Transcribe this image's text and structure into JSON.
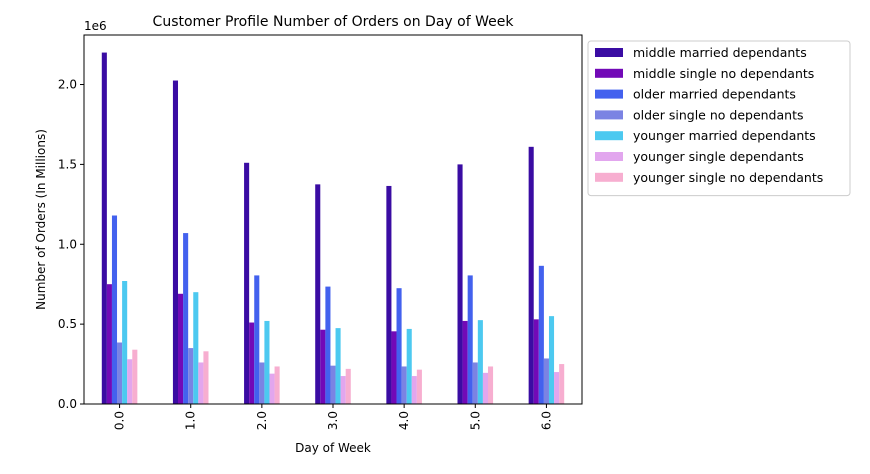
{
  "chart_data": {
    "type": "bar",
    "title": "Customer Profile Number of Orders on Day of Week",
    "xlabel": "Day of Week",
    "ylabel": "Number of Orders (In Millions)",
    "y_offset_label": "1e6",
    "ylim": [
      0,
      2310000
    ],
    "yticks": [
      "0.0",
      "0.5",
      "1.0",
      "1.5",
      "2.0"
    ],
    "ytick_values": [
      0,
      500000,
      1000000,
      1500000,
      2000000
    ],
    "categories": [
      "0.0",
      "1.0",
      "2.0",
      "3.0",
      "4.0",
      "5.0",
      "6.0"
    ],
    "grid": false,
    "legend_position": "outside-upper-right",
    "series": [
      {
        "name": "middle married dependants",
        "color": "#3a0ca3",
        "values": [
          2200000,
          2025000,
          1510000,
          1375000,
          1365000,
          1500000,
          1610000
        ]
      },
      {
        "name": "middle single no dependants",
        "color": "#7209b7",
        "values": [
          750000,
          690000,
          510000,
          465000,
          455000,
          520000,
          530000
        ]
      },
      {
        "name": "older married dependants",
        "color": "#4361ee",
        "values": [
          1180000,
          1070000,
          805000,
          735000,
          725000,
          805000,
          865000
        ]
      },
      {
        "name": "older single no dependants",
        "color": "#7b83e3",
        "values": [
          385000,
          350000,
          260000,
          240000,
          235000,
          260000,
          285000
        ]
      },
      {
        "name": "younger married dependants",
        "color": "#4cc9f0",
        "values": [
          770000,
          700000,
          520000,
          475000,
          470000,
          525000,
          550000
        ]
      },
      {
        "name": "younger single dependants",
        "color": "#e2a6ee",
        "values": [
          280000,
          260000,
          190000,
          175000,
          175000,
          195000,
          200000
        ]
      },
      {
        "name": "younger single no dependants",
        "color": "#f7aed0",
        "values": [
          340000,
          330000,
          235000,
          220000,
          215000,
          235000,
          250000
        ]
      }
    ]
  }
}
